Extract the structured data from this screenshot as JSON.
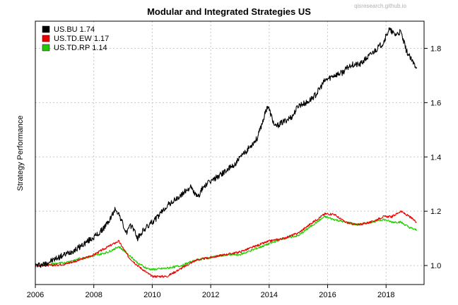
{
  "chart_data": {
    "type": "line",
    "title": "Modular and Integrated Strategies US",
    "watermark": "qisresearch.github.io",
    "xlabel": "",
    "ylabel": "Strategy Performance",
    "xlim": [
      2006.0,
      2019.3
    ],
    "ylim": [
      0.93,
      1.9
    ],
    "x_ticks": [
      "2006",
      "2008",
      "2010",
      "2012",
      "2014",
      "2016",
      "2018"
    ],
    "y_ticks": [
      "1.0",
      "1.2",
      "1.4",
      "1.6",
      "1.8"
    ],
    "grid": true,
    "legend_position": "top-left",
    "series": [
      {
        "name": "US.BU 1.74",
        "color": "#000000",
        "x": [
          2006.0,
          2006.3,
          2006.6,
          2007.0,
          2007.4,
          2007.8,
          2008.2,
          2008.5,
          2008.75,
          2008.9,
          2009.1,
          2009.3,
          2009.5,
          2009.7,
          2009.9,
          2010.2,
          2010.5,
          2010.9,
          2011.3,
          2011.55,
          2011.75,
          2012.0,
          2012.4,
          2012.8,
          2013.2,
          2013.6,
          2013.95,
          2014.2,
          2014.5,
          2014.8,
          2015.0,
          2015.3,
          2015.6,
          2015.9,
          2016.2,
          2016.5,
          2016.8,
          2017.1,
          2017.4,
          2017.7,
          2017.9,
          2018.1,
          2018.3,
          2018.5,
          2018.7,
          2018.9,
          2019.05
        ],
        "values": [
          1.0,
          1.005,
          1.02,
          1.04,
          1.06,
          1.09,
          1.12,
          1.16,
          1.21,
          1.18,
          1.12,
          1.15,
          1.1,
          1.13,
          1.15,
          1.18,
          1.22,
          1.25,
          1.29,
          1.25,
          1.29,
          1.31,
          1.34,
          1.37,
          1.42,
          1.47,
          1.59,
          1.51,
          1.53,
          1.55,
          1.59,
          1.6,
          1.63,
          1.68,
          1.7,
          1.71,
          1.74,
          1.74,
          1.77,
          1.8,
          1.82,
          1.87,
          1.85,
          1.86,
          1.79,
          1.75,
          1.73
        ]
      },
      {
        "name": "US.TD.EW 1.17",
        "color": "#ee0000",
        "x": [
          2006.0,
          2006.5,
          2007.0,
          2007.5,
          2008.0,
          2008.5,
          2008.85,
          2009.2,
          2009.5,
          2009.8,
          2010.0,
          2010.5,
          2011.0,
          2011.5,
          2012.0,
          2012.5,
          2013.0,
          2013.5,
          2014.0,
          2014.5,
          2015.0,
          2015.5,
          2015.9,
          2016.2,
          2016.6,
          2017.0,
          2017.5,
          2017.9,
          2018.2,
          2018.5,
          2018.8,
          2019.05
        ],
        "values": [
          1.0,
          1.0,
          1.005,
          1.02,
          1.04,
          1.07,
          1.09,
          1.03,
          1.0,
          0.975,
          0.96,
          0.96,
          0.99,
          1.02,
          1.03,
          1.04,
          1.05,
          1.07,
          1.09,
          1.1,
          1.12,
          1.16,
          1.19,
          1.19,
          1.16,
          1.15,
          1.16,
          1.18,
          1.18,
          1.2,
          1.18,
          1.16
        ]
      },
      {
        "name": "US.TD.RP 1.14",
        "color": "#22cc00",
        "x": [
          2006.0,
          2006.5,
          2007.0,
          2007.5,
          2008.0,
          2008.5,
          2008.85,
          2009.2,
          2009.5,
          2009.8,
          2010.0,
          2010.5,
          2011.0,
          2011.5,
          2012.0,
          2012.5,
          2013.0,
          2013.5,
          2014.0,
          2014.5,
          2015.0,
          2015.5,
          2015.9,
          2016.2,
          2016.6,
          2017.0,
          2017.5,
          2017.9,
          2018.2,
          2018.5,
          2018.8,
          2019.05
        ],
        "values": [
          1.0,
          1.005,
          1.01,
          1.025,
          1.035,
          1.05,
          1.07,
          1.04,
          1.01,
          0.99,
          0.985,
          0.99,
          1.0,
          1.02,
          1.03,
          1.04,
          1.04,
          1.06,
          1.08,
          1.1,
          1.11,
          1.15,
          1.18,
          1.17,
          1.16,
          1.15,
          1.16,
          1.17,
          1.16,
          1.16,
          1.14,
          1.13
        ]
      }
    ]
  }
}
